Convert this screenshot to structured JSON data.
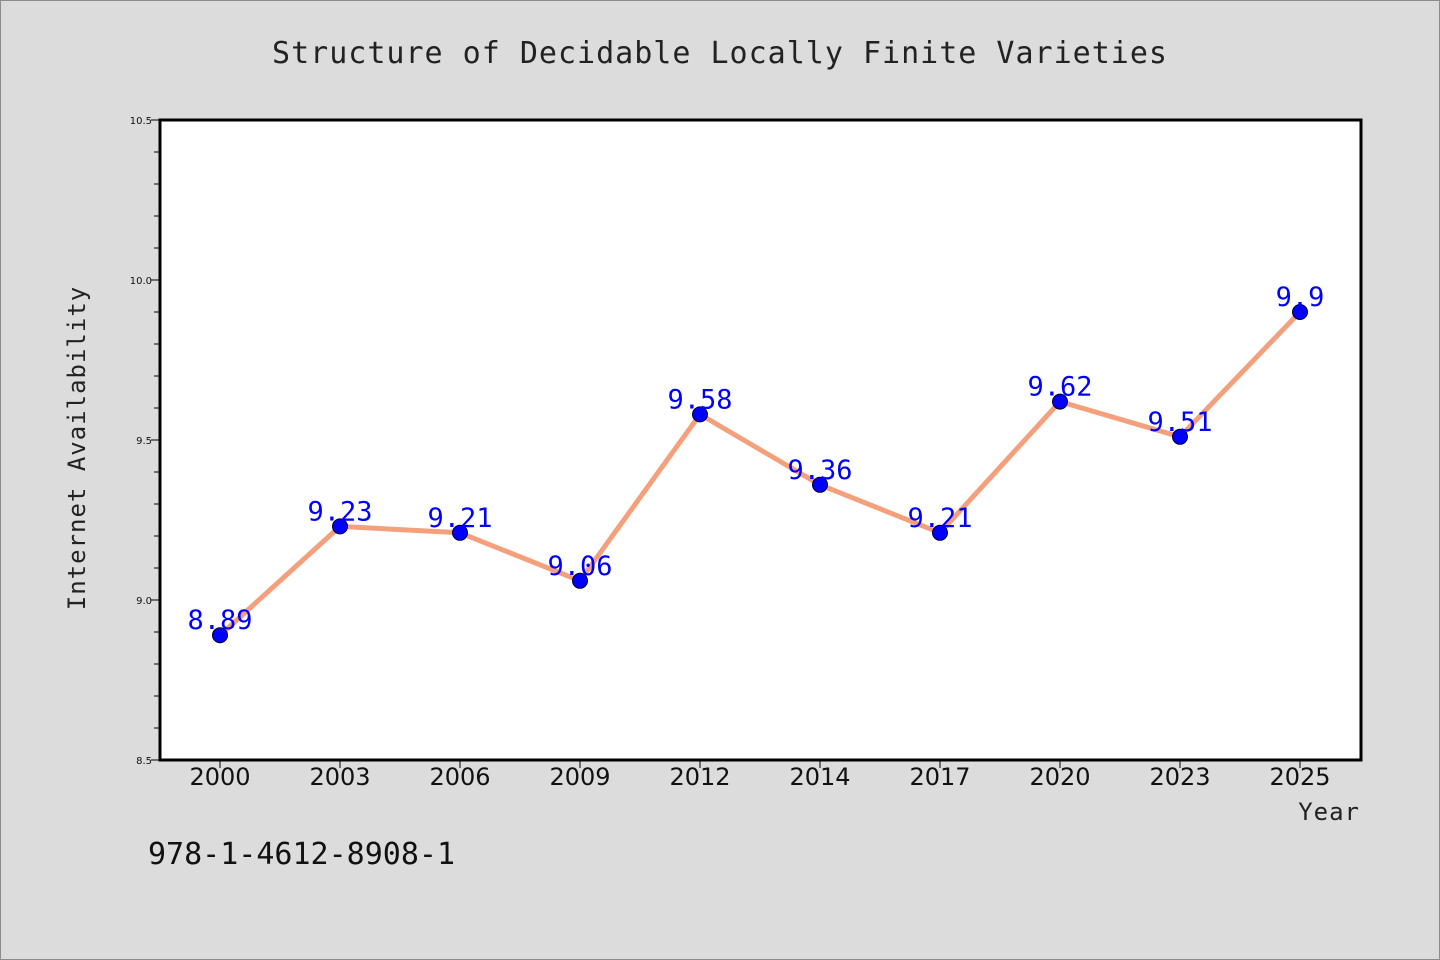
{
  "chart_data": {
    "type": "line",
    "title": "Structure of Decidable Locally Finite Varieties",
    "xlabel": "Year",
    "ylabel": "Internet Availability",
    "categories": [
      "2000",
      "2003",
      "2006",
      "2009",
      "2012",
      "2014",
      "2017",
      "2020",
      "2023",
      "2025"
    ],
    "series": [
      {
        "values": [
          8.89,
          9.23,
          9.21,
          9.06,
          9.58,
          9.36,
          9.21,
          9.62,
          9.51,
          9.9
        ],
        "labels": [
          "8.89",
          "9.23",
          "9.21",
          "9.06",
          "9.58",
          "9.36",
          "9.21",
          "9.62",
          "9.51",
          "9.9"
        ],
        "line_color": "#f4a07c",
        "marker_color": "#0000ff"
      }
    ],
    "ylim": [
      8.5,
      10.5
    ],
    "yticks": [
      "8.5",
      "9.0",
      "9.5",
      "10.0",
      "10.5"
    ],
    "grid": false,
    "legend": "none"
  },
  "footer": {
    "isbn": "978-1-4612-8908-1"
  }
}
